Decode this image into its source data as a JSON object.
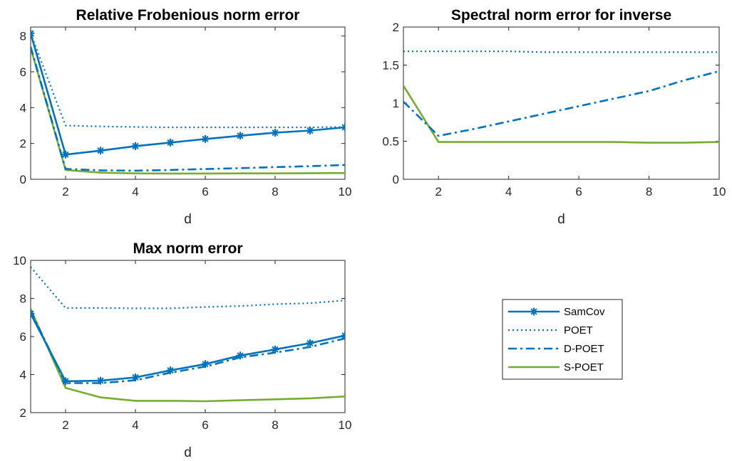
{
  "chart_data": [
    {
      "type": "line",
      "title": "Relative Frobenious norm error",
      "xlabel": "d",
      "ylabel": "",
      "xlim": [
        1,
        10
      ],
      "ylim": [
        0,
        8.5
      ],
      "xticks": [
        2,
        4,
        6,
        8,
        10
      ],
      "yticks": [
        0,
        2,
        4,
        6,
        8
      ],
      "x": [
        1,
        2,
        3,
        4,
        5,
        6,
        7,
        8,
        9,
        10
      ],
      "series": [
        {
          "name": "SamCov",
          "values": [
            8.15,
            1.38,
            1.6,
            1.85,
            2.05,
            2.25,
            2.43,
            2.6,
            2.72,
            2.9
          ]
        },
        {
          "name": "POET",
          "values": [
            8.15,
            3.0,
            2.95,
            2.92,
            2.9,
            2.9,
            2.9,
            2.9,
            2.9,
            2.92
          ]
        },
        {
          "name": "D-POET",
          "values": [
            7.4,
            0.58,
            0.5,
            0.48,
            0.52,
            0.57,
            0.62,
            0.68,
            0.73,
            0.8
          ]
        },
        {
          "name": "S-POET",
          "values": [
            7.35,
            0.52,
            0.37,
            0.33,
            0.32,
            0.32,
            0.33,
            0.33,
            0.34,
            0.35
          ]
        }
      ]
    },
    {
      "type": "line",
      "title": "Spectral norm error for inverse",
      "xlabel": "d",
      "ylabel": "",
      "xlim": [
        1,
        10
      ],
      "ylim": [
        0,
        2
      ],
      "xticks": [
        2,
        4,
        6,
        8,
        10
      ],
      "yticks": [
        0,
        0.5,
        1,
        1.5,
        2
      ],
      "x": [
        1,
        2,
        3,
        4,
        5,
        6,
        7,
        8,
        9,
        10
      ],
      "series": [
        {
          "name": "POET",
          "values": [
            1.68,
            1.68,
            1.68,
            1.68,
            1.67,
            1.67,
            1.67,
            1.67,
            1.67,
            1.67
          ]
        },
        {
          "name": "D-POET",
          "values": [
            1.02,
            0.57,
            0.66,
            0.76,
            0.86,
            0.96,
            1.06,
            1.16,
            1.3,
            1.42
          ]
        },
        {
          "name": "S-POET",
          "values": [
            1.23,
            0.49,
            0.49,
            0.49,
            0.49,
            0.49,
            0.49,
            0.48,
            0.48,
            0.49
          ]
        }
      ]
    },
    {
      "type": "line",
      "title": "Max norm error",
      "xlabel": "d",
      "ylabel": "",
      "xlim": [
        1,
        10
      ],
      "ylim": [
        2,
        10
      ],
      "xticks": [
        2,
        4,
        6,
        8,
        10
      ],
      "yticks": [
        2,
        4,
        6,
        8,
        10
      ],
      "x": [
        1,
        2,
        3,
        4,
        5,
        6,
        7,
        8,
        9,
        10
      ],
      "series": [
        {
          "name": "SamCov",
          "values": [
            7.2,
            3.65,
            3.68,
            3.85,
            4.22,
            4.55,
            5.0,
            5.32,
            5.65,
            6.05
          ]
        },
        {
          "name": "POET",
          "values": [
            9.65,
            7.5,
            7.5,
            7.48,
            7.48,
            7.55,
            7.6,
            7.7,
            7.75,
            7.9
          ]
        },
        {
          "name": "D-POET",
          "values": [
            7.35,
            3.55,
            3.55,
            3.7,
            4.1,
            4.42,
            4.9,
            5.15,
            5.45,
            5.9
          ]
        },
        {
          "name": "S-POET",
          "values": [
            7.45,
            3.3,
            2.8,
            2.62,
            2.62,
            2.6,
            2.65,
            2.7,
            2.75,
            2.85
          ]
        }
      ]
    }
  ],
  "legend": {
    "placement": "right-middle",
    "items": [
      {
        "name": "SamCov",
        "color": "#0072BD",
        "style": "solid-star"
      },
      {
        "name": "POET",
        "color": "#0072BD",
        "style": "dotted"
      },
      {
        "name": "D-POET",
        "color": "#0072BD",
        "style": "dashdot"
      },
      {
        "name": "S-POET",
        "color": "#77AC30",
        "style": "solid"
      }
    ]
  },
  "colors": {
    "blue": "#0072BD",
    "green": "#77AC30",
    "axis": "#262626"
  }
}
